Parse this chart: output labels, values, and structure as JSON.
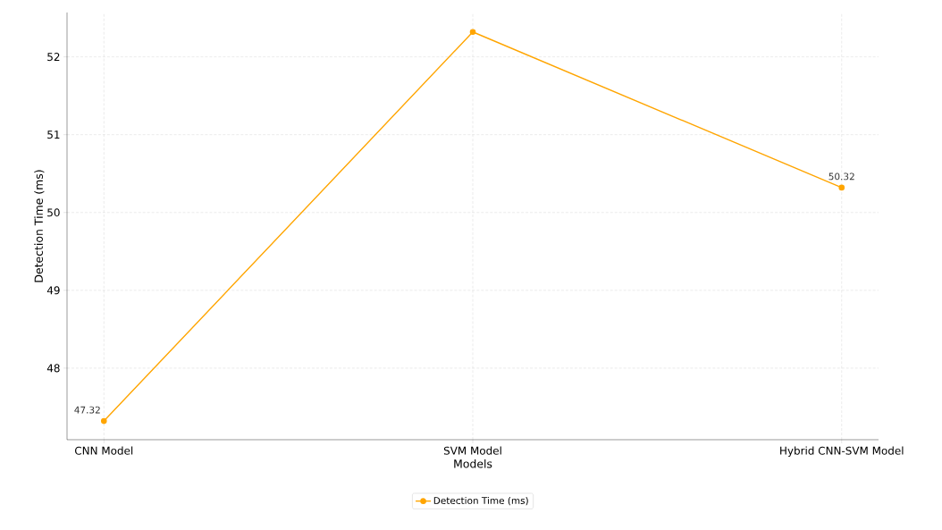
{
  "chart_data": {
    "type": "line",
    "xlabel": "Models",
    "ylabel": "Detection Time (ms)",
    "categories": [
      "CNN Model",
      "SVM Model",
      "Hybrid CNN-SVM Model"
    ],
    "series": [
      {
        "name": "Detection Time (ms)",
        "color": "#ffa500",
        "values": [
          47.32,
          52.32,
          50.32
        ],
        "value_labels": [
          "47.32",
          null,
          "50.32"
        ]
      }
    ],
    "ylim": [
      47.08,
      52.57
    ],
    "yticks": [
      48,
      49,
      50,
      51,
      52
    ],
    "grid": true,
    "legend": "bottom",
    "marker": "circle",
    "line_style": "solid"
  }
}
